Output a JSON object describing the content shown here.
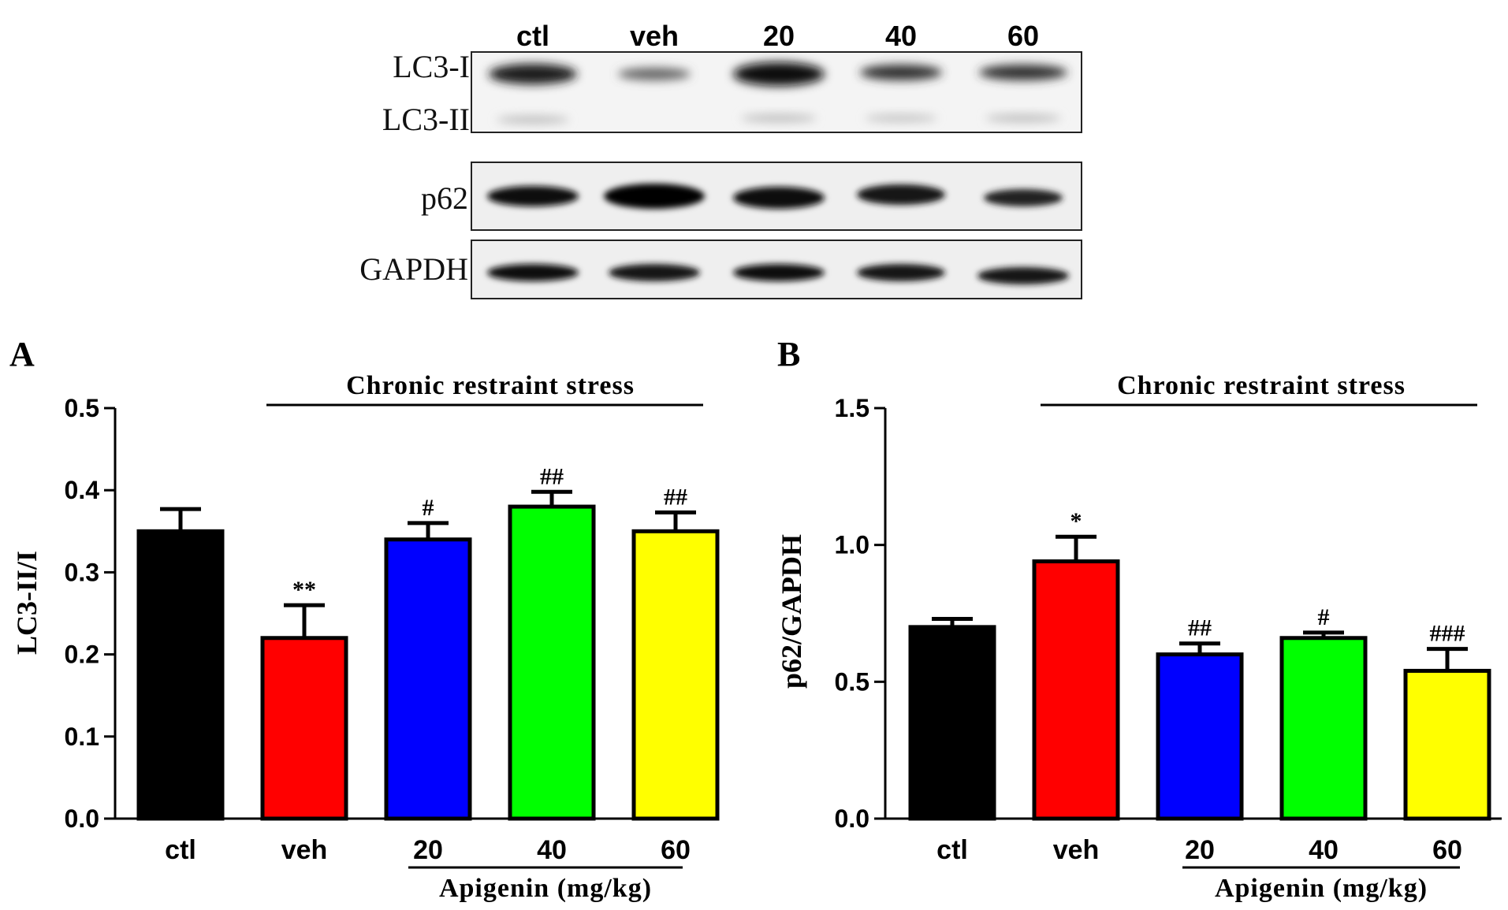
{
  "blot": {
    "lanes": [
      "ctl",
      "veh",
      "20",
      "40",
      "60"
    ],
    "bands": [
      "LC3-I",
      "LC3-II",
      "p62",
      "GAPDH"
    ]
  },
  "colors": {
    "ctl": "#000000",
    "veh": "#ff0000",
    "20": "#0000ff",
    "40": "#00ff00",
    "60": "#ffff00"
  },
  "chart_data": [
    {
      "type": "bar",
      "panel": "A",
      "ylabel": "LC3-II/I",
      "ylim": [
        0,
        0.5
      ],
      "yticks": [
        "0.0",
        "0.1",
        "0.2",
        "0.3",
        "0.4",
        "0.5"
      ],
      "categories": [
        "ctl",
        "veh",
        "20",
        "40",
        "60"
      ],
      "values": [
        0.35,
        0.22,
        0.34,
        0.38,
        0.35
      ],
      "errors": [
        0.027,
        0.04,
        0.02,
        0.018,
        0.023
      ],
      "significance": [
        "",
        "**",
        "#",
        "##",
        "##"
      ],
      "group_label": "Chronic restraint stress",
      "dose_label": "Apigenin (mg/kg)"
    },
    {
      "type": "bar",
      "panel": "B",
      "ylabel": "p62/GAPDH",
      "ylim": [
        0,
        1.5
      ],
      "yticks": [
        "0.0",
        "0.5",
        "1.0",
        "1.5"
      ],
      "categories": [
        "ctl",
        "veh",
        "20",
        "40",
        "60"
      ],
      "values": [
        0.7,
        0.94,
        0.6,
        0.66,
        0.54
      ],
      "errors": [
        0.03,
        0.09,
        0.04,
        0.02,
        0.08
      ],
      "significance": [
        "",
        "*",
        "##",
        "#",
        "###"
      ],
      "group_label": "Chronic restraint stress",
      "dose_label": "Apigenin (mg/kg)"
    }
  ]
}
